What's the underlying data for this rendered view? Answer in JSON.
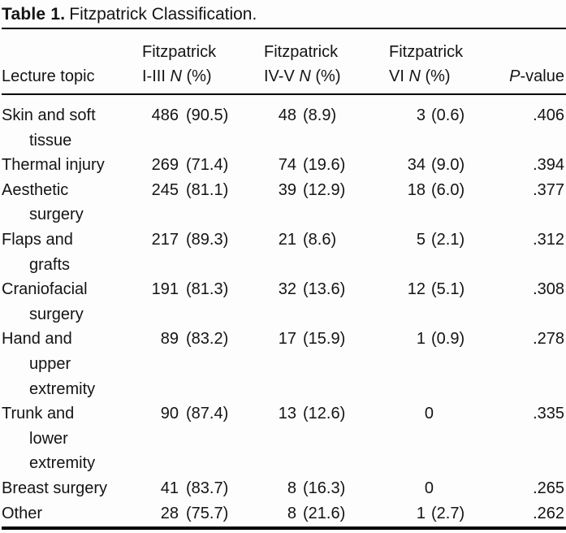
{
  "title": {
    "label": "Table 1.",
    "text": "Fitzpatrick Classification."
  },
  "table": {
    "header": {
      "topic": "Lecture topic",
      "col2": {
        "line1": "Fitzpatrick",
        "range": "I-III ",
        "n": "N",
        "unit": " (%)"
      },
      "col3": {
        "line1": "Fitzpatrick",
        "range": "IV-V ",
        "n": "N",
        "unit": " (%)"
      },
      "col4": {
        "line1": "Fitzpatrick",
        "range": "VI ",
        "n": "N",
        "unit": " (%)"
      },
      "p": {
        "italic": "P",
        "rest": "-value"
      }
    },
    "rows": [
      {
        "topic_lines": [
          "Skin and soft",
          "tissue"
        ],
        "f13": {
          "n": "486",
          "pct": "(90.5)"
        },
        "f45": {
          "n": "48",
          "pct": "(8.9)"
        },
        "f6": {
          "n": "3",
          "pct": "(0.6)"
        },
        "p": ".406"
      },
      {
        "topic_lines": [
          "Thermal injury"
        ],
        "f13": {
          "n": "269",
          "pct": "(71.4)"
        },
        "f45": {
          "n": "74",
          "pct": "(19.6)"
        },
        "f6": {
          "n": "34",
          "pct": "(9.0)"
        },
        "p": ".394"
      },
      {
        "topic_lines": [
          "Aesthetic",
          "surgery"
        ],
        "f13": {
          "n": "245",
          "pct": "(81.1)"
        },
        "f45": {
          "n": "39",
          "pct": "(12.9)"
        },
        "f6": {
          "n": "18",
          "pct": "(6.0)"
        },
        "p": ".377"
      },
      {
        "topic_lines": [
          "Flaps and",
          "grafts"
        ],
        "f13": {
          "n": "217",
          "pct": "(89.3)"
        },
        "f45": {
          "n": "21",
          "pct": "(8.6)"
        },
        "f6": {
          "n": "5",
          "pct": "(2.1)"
        },
        "p": ".312"
      },
      {
        "topic_lines": [
          "Craniofacial",
          "surgery"
        ],
        "f13": {
          "n": "191",
          "pct": "(81.3)"
        },
        "f45": {
          "n": "32",
          "pct": "(13.6)"
        },
        "f6": {
          "n": "12",
          "pct": "(5.1)"
        },
        "p": ".308"
      },
      {
        "topic_lines": [
          "Hand and",
          "upper",
          "extremity"
        ],
        "f13": {
          "n": "89",
          "pct": "(83.2)"
        },
        "f45": {
          "n": "17",
          "pct": "(15.9)"
        },
        "f6": {
          "n": "1",
          "pct": "(0.9)"
        },
        "p": ".278"
      },
      {
        "topic_lines": [
          "Trunk and",
          "lower",
          "extremity"
        ],
        "f13": {
          "n": "90",
          "pct": "(87.4)"
        },
        "f45": {
          "n": "13",
          "pct": "(12.6)"
        },
        "f6": {
          "n": "0",
          "pct": ""
        },
        "p": ".335"
      },
      {
        "topic_lines": [
          "Breast surgery"
        ],
        "f13": {
          "n": "41",
          "pct": "(83.7)"
        },
        "f45": {
          "n": "8",
          "pct": "(16.3)"
        },
        "f6": {
          "n": "0",
          "pct": ""
        },
        "p": ".265"
      },
      {
        "topic_lines": [
          "Other"
        ],
        "f13": {
          "n": "28",
          "pct": "(75.7)"
        },
        "f45": {
          "n": "8",
          "pct": "(21.6)"
        },
        "f6": {
          "n": "1",
          "pct": "(2.7)"
        },
        "p": ".262"
      }
    ]
  }
}
